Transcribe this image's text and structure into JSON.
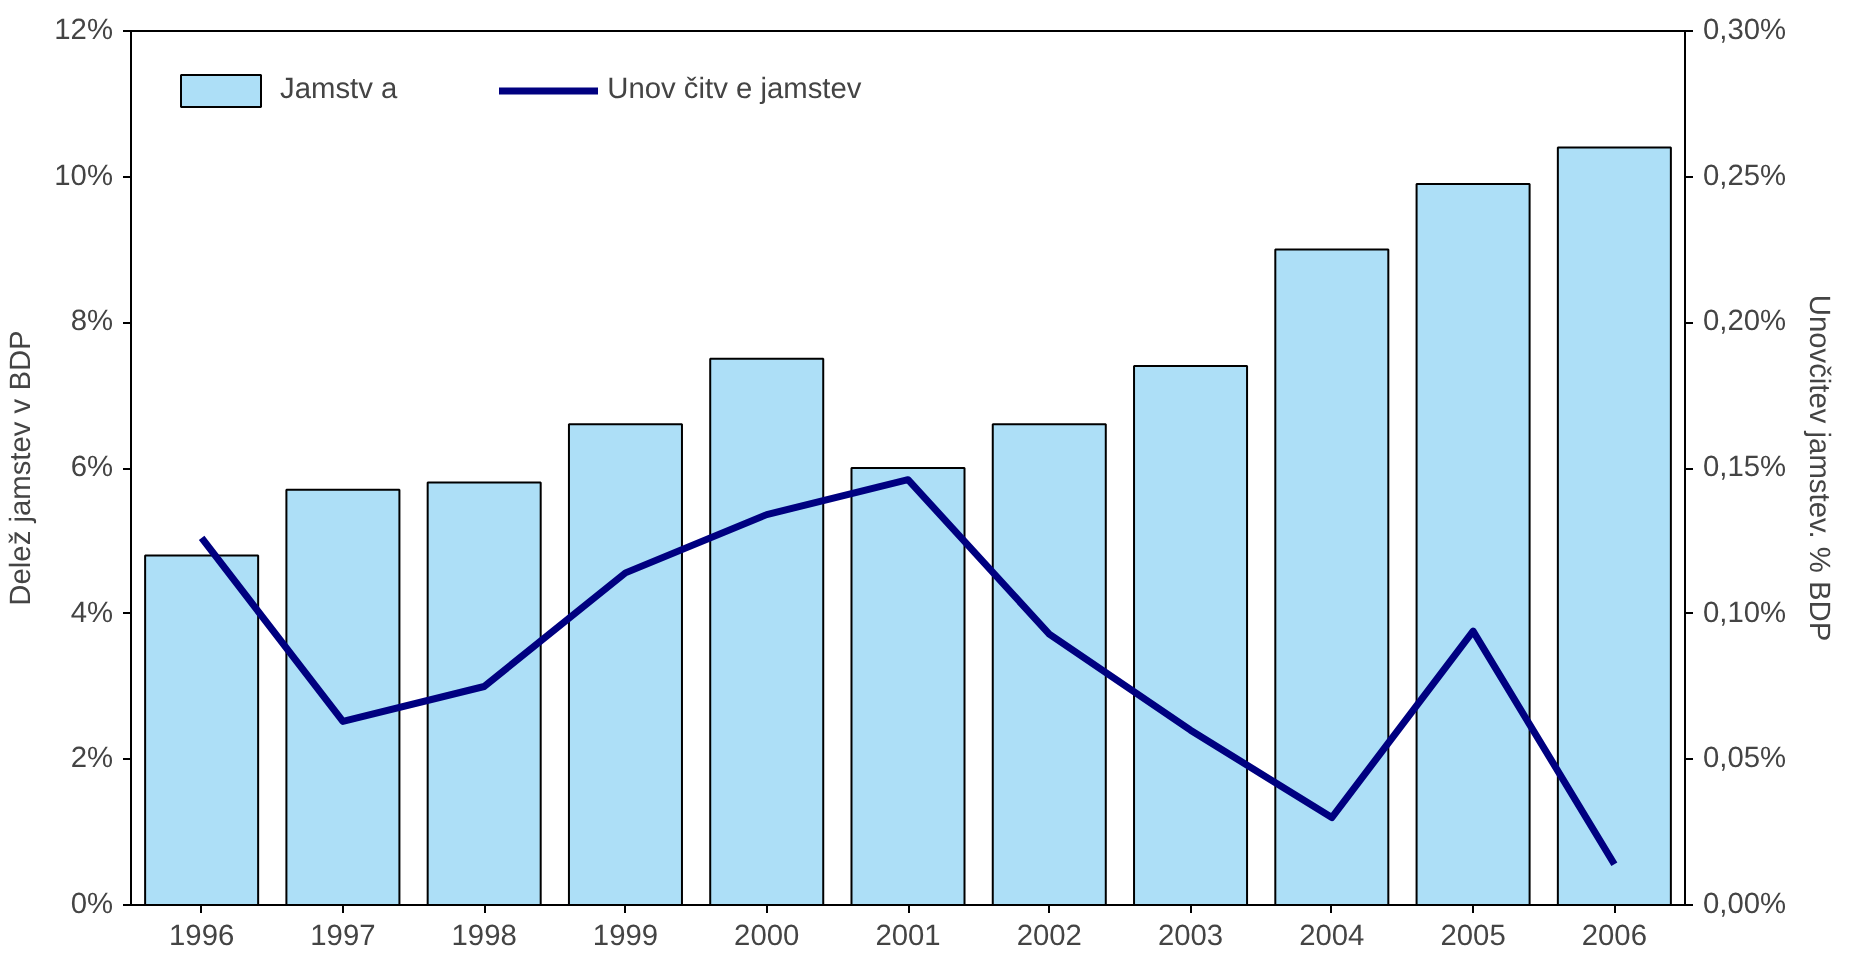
{
  "chart_data": {
    "type": "bar",
    "ylabel": "Delež jamstev v BDP",
    "y2label": "Unovčitev jamstev. % BDP",
    "categories": [
      "1996",
      "1997",
      "1998",
      "1999",
      "2000",
      "2001",
      "2002",
      "2003",
      "2004",
      "2005",
      "2006"
    ],
    "series": [
      {
        "name": "Jamstv a",
        "color": "#addff7",
        "values": [
          4.8,
          5.7,
          5.8,
          6.6,
          7.5,
          6.0,
          6.6,
          7.4,
          9.0,
          9.9,
          10.4
        ]
      },
      {
        "name": "Unov čitv e jamstev",
        "type": "line",
        "axis": "y2",
        "color": "#000080",
        "values": [
          0.126,
          0.063,
          0.075,
          0.114,
          0.134,
          0.146,
          0.093,
          0.06,
          0.03,
          0.094,
          0.014
        ]
      }
    ],
    "ylim": [
      0,
      12
    ],
    "yticks": [
      {
        "value": 0,
        "label": "0%"
      },
      {
        "value": 2,
        "label": "2%"
      },
      {
        "value": 4,
        "label": "4%"
      },
      {
        "value": 6,
        "label": "6%"
      },
      {
        "value": 8,
        "label": "8%"
      },
      {
        "value": 10,
        "label": "10%"
      },
      {
        "value": 12,
        "label": "12%"
      }
    ],
    "y2lim": [
      0,
      0.3
    ],
    "y2ticks": [
      {
        "value": 0,
        "label": "0,00%"
      },
      {
        "value": 0.05,
        "label": "0,05%"
      },
      {
        "value": 0.1,
        "label": "0,10%"
      },
      {
        "value": 0.15,
        "label": "0,15%"
      },
      {
        "value": 0.2,
        "label": "0,20%"
      },
      {
        "value": 0.25,
        "label": "0,25%"
      },
      {
        "value": 0.3,
        "label": "0,30%"
      }
    ],
    "grid": false,
    "legend": "top left",
    "marker": "none",
    "line_style": "solid"
  }
}
